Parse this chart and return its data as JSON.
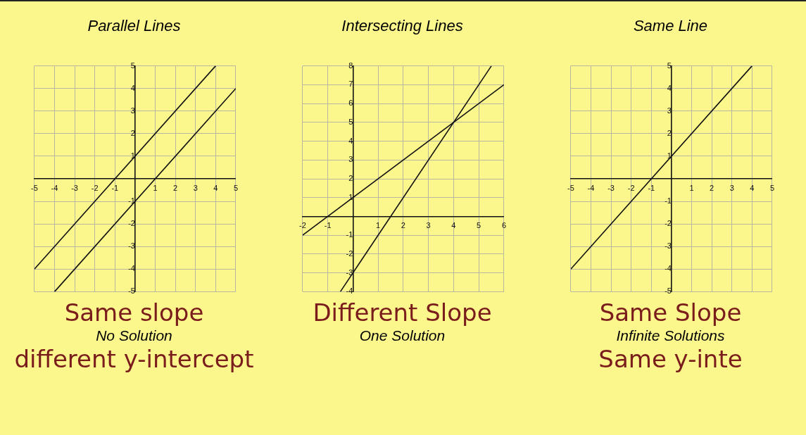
{
  "chart_data": [
    {
      "type": "line",
      "title": "Parallel Lines",
      "xlim": [
        -5,
        5
      ],
      "ylim": [
        -5,
        5
      ],
      "xticks": [
        -5,
        -4,
        -3,
        -2,
        -1,
        1,
        2,
        3,
        4,
        5
      ],
      "yticks": [
        -5,
        -4,
        -3,
        -2,
        -1,
        1,
        2,
        3,
        4,
        5
      ],
      "grid": true,
      "legend": false,
      "marker": "none",
      "line_style": "solid",
      "series": [
        {
          "color": "#111111",
          "x": [
            -5,
            4
          ],
          "values": [
            -4,
            5
          ]
        },
        {
          "color": "#111111",
          "x": [
            -4,
            5
          ],
          "values": [
            -5,
            4
          ]
        }
      ],
      "annotations": [
        "Same slope",
        "No Solution",
        "different y-intercept"
      ]
    },
    {
      "type": "line",
      "title": "Intersecting Lines",
      "xlim": [
        -2,
        6
      ],
      "ylim": [
        -4,
        8
      ],
      "xticks": [
        -2,
        -1,
        1,
        2,
        3,
        4,
        5,
        6
      ],
      "yticks": [
        -4,
        -3,
        -2,
        -1,
        1,
        2,
        3,
        4,
        5,
        6,
        7,
        8
      ],
      "grid": true,
      "legend": false,
      "marker": "none",
      "line_style": "solid",
      "series": [
        {
          "color": "#111111",
          "x": [
            -2,
            6
          ],
          "values": [
            -1,
            7
          ]
        },
        {
          "color": "#111111",
          "x": [
            -0.5,
            5.5
          ],
          "values": [
            -4,
            8
          ]
        }
      ],
      "annotations": [
        "Different Slope",
        "One Solution"
      ]
    },
    {
      "type": "line",
      "title": "Same Line",
      "xlim": [
        -5,
        5
      ],
      "ylim": [
        -5,
        5
      ],
      "xticks": [
        -5,
        -4,
        -3,
        -2,
        -1,
        1,
        2,
        3,
        4,
        5
      ],
      "yticks": [
        -5,
        -4,
        -3,
        -2,
        -1,
        1,
        2,
        3,
        4,
        5
      ],
      "grid": true,
      "legend": false,
      "marker": "none",
      "line_style": "solid",
      "series": [
        {
          "color": "#111111",
          "x": [
            -5,
            4
          ],
          "values": [
            -4,
            5
          ]
        }
      ],
      "annotations": [
        "Same Slope",
        "Infinite Solutions",
        "Same y-inte"
      ]
    }
  ]
}
